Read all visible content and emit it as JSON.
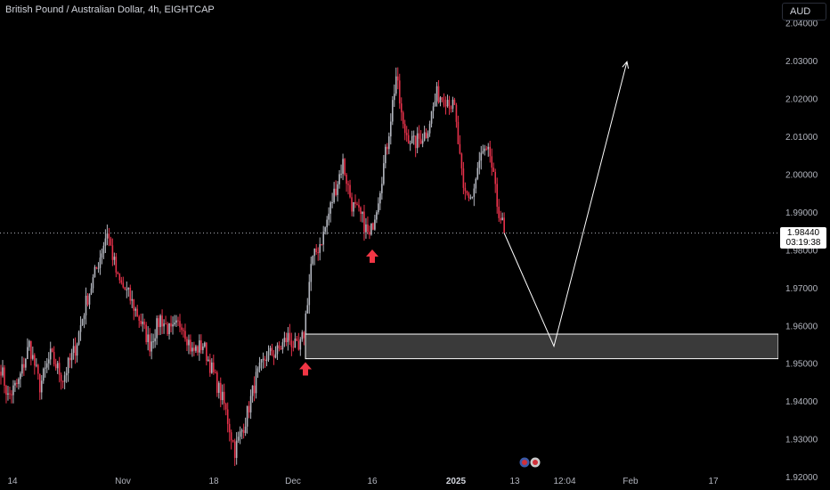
{
  "header": {
    "symbol_title": "British Pound / Australian Dollar, 4h, EIGHTCAP",
    "currency_button": "AUD"
  },
  "price_marker": {
    "price": "1.98440",
    "countdown": "03:19:38"
  },
  "colors": {
    "background": "#000000",
    "up_candle": "#b2b5be",
    "down_candle": "#e6314a",
    "arrow": "#f23645",
    "zone_fill": "#3a3a3a",
    "zone_border": "#ffffff",
    "projection_line": "#ffffff"
  },
  "chart_data": {
    "type": "candlestick",
    "title": "British Pound / Australian Dollar, 4h, EIGHTCAP",
    "ylim": [
      1.9165,
      2.046
    ],
    "yticks": [
      "2.04000",
      "2.03000",
      "2.02000",
      "2.01000",
      "2.00000",
      "1.99000",
      "1.98000",
      "1.97000",
      "1.96000",
      "1.95000",
      "1.94000",
      "1.93000",
      "1.92000"
    ],
    "xticks": [
      {
        "label": "14",
        "bold": false
      },
      {
        "label": "Nov",
        "bold": false
      },
      {
        "label": "18",
        "bold": false
      },
      {
        "label": "Dec",
        "bold": false
      },
      {
        "label": "16",
        "bold": false
      },
      {
        "label": "2025",
        "bold": true
      },
      {
        "label": "13",
        "bold": false
      },
      {
        "label": "12:04",
        "bold": false
      },
      {
        "label": "Feb",
        "bold": false
      },
      {
        "label": "17",
        "bold": false
      }
    ],
    "last_price": 1.9844,
    "path_anchors": [
      {
        "i": 0,
        "p": 1.949
      },
      {
        "i": 4,
        "p": 1.941
      },
      {
        "i": 10,
        "p": 1.945
      },
      {
        "i": 16,
        "p": 1.955
      },
      {
        "i": 22,
        "p": 1.944
      },
      {
        "i": 28,
        "p": 1.952
      },
      {
        "i": 35,
        "p": 1.946
      },
      {
        "i": 42,
        "p": 1.954
      },
      {
        "i": 48,
        "p": 1.966
      },
      {
        "i": 54,
        "p": 1.975
      },
      {
        "i": 60,
        "p": 1.985
      },
      {
        "i": 66,
        "p": 1.972
      },
      {
        "i": 72,
        "p": 1.968
      },
      {
        "i": 78,
        "p": 1.962
      },
      {
        "i": 84,
        "p": 1.955
      },
      {
        "i": 90,
        "p": 1.962
      },
      {
        "i": 96,
        "p": 1.958
      },
      {
        "i": 102,
        "p": 1.961
      },
      {
        "i": 108,
        "p": 1.953
      },
      {
        "i": 114,
        "p": 1.955
      },
      {
        "i": 120,
        "p": 1.947
      },
      {
        "i": 126,
        "p": 1.939
      },
      {
        "i": 132,
        "p": 1.927
      },
      {
        "i": 138,
        "p": 1.935
      },
      {
        "i": 144,
        "p": 1.946
      },
      {
        "i": 150,
        "p": 1.952
      },
      {
        "i": 156,
        "p": 1.953
      },
      {
        "i": 162,
        "p": 1.957
      },
      {
        "i": 168,
        "p": 1.953
      },
      {
        "i": 171,
        "p": 1.958
      },
      {
        "i": 175,
        "p": 1.976
      },
      {
        "i": 182,
        "p": 1.984
      },
      {
        "i": 188,
        "p": 1.995
      },
      {
        "i": 193,
        "p": 2.003
      },
      {
        "i": 198,
        "p": 1.992
      },
      {
        "i": 204,
        "p": 1.988
      },
      {
        "i": 208,
        "p": 1.983
      },
      {
        "i": 213,
        "p": 1.994
      },
      {
        "i": 218,
        "p": 2.008
      },
      {
        "i": 223,
        "p": 2.026
      },
      {
        "i": 227,
        "p": 2.012
      },
      {
        "i": 233,
        "p": 2.008
      },
      {
        "i": 240,
        "p": 2.011
      },
      {
        "i": 246,
        "p": 2.021
      },
      {
        "i": 252,
        "p": 2.02
      },
      {
        "i": 256,
        "p": 2.017
      },
      {
        "i": 261,
        "p": 1.995
      },
      {
        "i": 266,
        "p": 1.994
      },
      {
        "i": 271,
        "p": 2.005
      },
      {
        "i": 276,
        "p": 2.005
      },
      {
        "i": 280,
        "p": 1.992
      },
      {
        "i": 284,
        "p": 1.985
      }
    ],
    "annotations": {
      "demand_zone": {
        "top": 1.9577,
        "bottom": 1.9512
      },
      "projection": [
        {
          "when": "last",
          "price": 1.9844
        },
        {
          "when": "12:04",
          "price": 1.9545
        },
        {
          "when": "Feb",
          "price": 2.0297
        }
      ],
      "arrows": [
        {
          "near": "Dec",
          "price": 1.9484,
          "direction": "up"
        },
        {
          "near": "16",
          "price": 1.9782,
          "direction": "up"
        }
      ]
    }
  }
}
